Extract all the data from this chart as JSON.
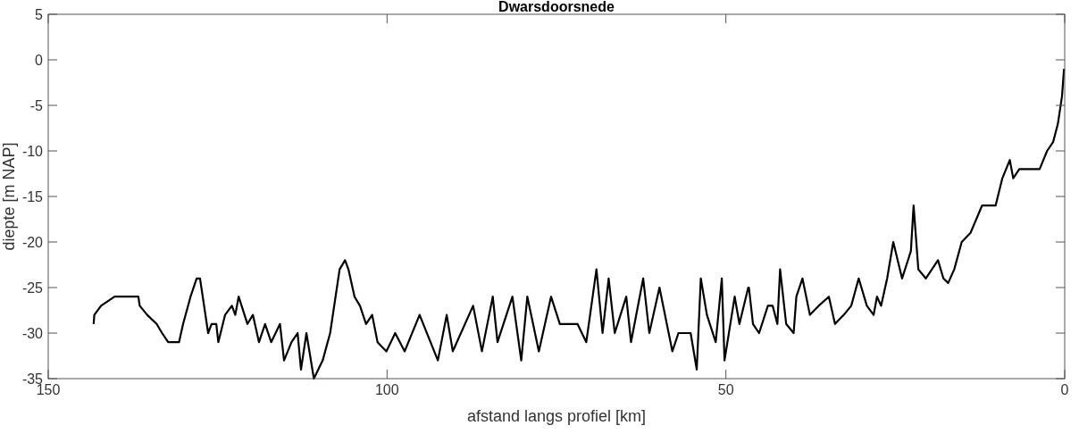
{
  "chart_data": {
    "type": "line",
    "title": "Dwarsdoorsnede",
    "xlabel": "afstand langs profiel [km]",
    "ylabel": "diepte [m NAP]",
    "xlim": [
      150,
      0
    ],
    "xticks": [
      150,
      100,
      50,
      0
    ],
    "ylim": [
      -35,
      5
    ],
    "yticks": [
      -35,
      -30,
      -25,
      -20,
      -15,
      -10,
      -5,
      0,
      5
    ],
    "grid": false,
    "series": [
      {
        "color": "#000000",
        "x": [
          143.3,
          143.2,
          142.2,
          140.2,
          136.7,
          136.5,
          135.4,
          134.0,
          133.2,
          132.3,
          130.7,
          130.1,
          129.0,
          128.1,
          127.6,
          126.4,
          125.9,
          125.2,
          124.9,
          123.9,
          122.9,
          122.4,
          121.9,
          120.6,
          119.8,
          118.9,
          118.0,
          117.1,
          115.8,
          115.2,
          114.1,
          113.2,
          112.7,
          111.9,
          110.8,
          109.5,
          108.4,
          107.0,
          106.2,
          105.7,
          104.8,
          104.0,
          103.1,
          102.2,
          101.4,
          100.1,
          98.8,
          97.4,
          95.2,
          92.5,
          91.2,
          90.3,
          87.3,
          86.0,
          84.4,
          83.7,
          81.5,
          80.2,
          79.3,
          77.6,
          75.8,
          74.5,
          71.9,
          70.6,
          69.1,
          68.2,
          67.3,
          66.4,
          64.7,
          64.0,
          62.2,
          61.3,
          59.8,
          57.9,
          57.0,
          55.2,
          54.3,
          53.7,
          52.8,
          51.5,
          50.6,
          50.2,
          48.7,
          48.0,
          46.7,
          46.6,
          46.0,
          45.1,
          43.8,
          43.1,
          42.4,
          42.0,
          41.1,
          40.0,
          39.6,
          38.7,
          37.6,
          36.3,
          34.8,
          33.9,
          32.6,
          31.5,
          30.4,
          29.2,
          28.2,
          27.7,
          27.1,
          26.2,
          25.3,
          24.0,
          22.7,
          22.3,
          21.6,
          20.5,
          18.7,
          17.9,
          17.2,
          16.3,
          15.2,
          13.9,
          12.2,
          10.2,
          9.2,
          8.1,
          7.6,
          6.7,
          3.7,
          2.6,
          1.7,
          1.0,
          0.4,
          0.1
        ],
        "values": [
          -29,
          -28,
          -27,
          -26,
          -26,
          -27,
          -28,
          -29,
          -30,
          -31,
          -31,
          -29,
          -26,
          -24,
          -24,
          -30,
          -29,
          -29,
          -31,
          -28,
          -27,
          -28,
          -26,
          -29,
          -28,
          -31,
          -29,
          -31,
          -29,
          -33,
          -31,
          -30,
          -34,
          -30,
          -35,
          -33,
          -30,
          -23,
          -22,
          -23,
          -26,
          -27,
          -29,
          -28,
          -31,
          -32,
          -30,
          -32,
          -28,
          -33,
          -28,
          -32,
          -27,
          -32,
          -26,
          -31,
          -26,
          -33,
          -26,
          -32,
          -26,
          -29,
          -29,
          -31,
          -23,
          -30,
          -24,
          -30,
          -26,
          -31,
          -24,
          -30,
          -25,
          -32,
          -30,
          -30,
          -34,
          -24,
          -28,
          -31,
          -24,
          -33,
          -26,
          -29,
          -25,
          -25,
          -29,
          -30,
          -27,
          -27,
          -29,
          -23,
          -29,
          -30,
          -26,
          -24,
          -28,
          -27,
          -26,
          -29,
          -28,
          -27,
          -24,
          -27,
          -28,
          -26,
          -27,
          -24,
          -20,
          -24,
          -21,
          -16,
          -23,
          -24,
          -22,
          -24,
          -24.5,
          -23,
          -20,
          -19,
          -16,
          -16,
          -13,
          -11,
          -13,
          -12,
          -12,
          -10,
          -9,
          -7,
          -4,
          -1
        ]
      }
    ]
  }
}
